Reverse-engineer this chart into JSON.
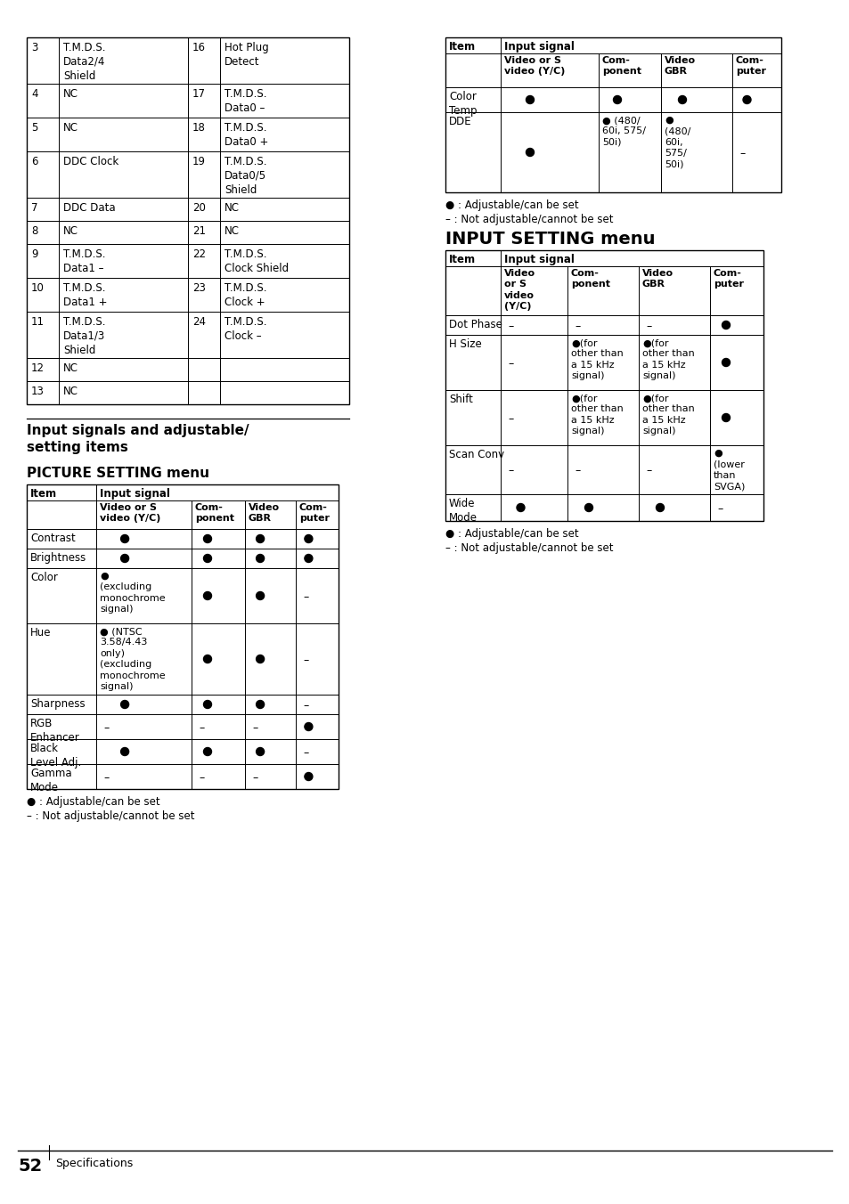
{
  "page_num": "52",
  "page_label": "Specifications",
  "top_table_rows": [
    [
      "3",
      "T.M.D.S.\nData2/4\nShield",
      "16",
      "Hot Plug\nDetect"
    ],
    [
      "4",
      "NC",
      "17",
      "T.M.D.S.\nData0 –"
    ],
    [
      "5",
      "NC",
      "18",
      "T.M.D.S.\nData0 +"
    ],
    [
      "6",
      "DDC Clock",
      "19",
      "T.M.D.S.\nData0/5\nShield"
    ],
    [
      "7",
      "DDC Data",
      "20",
      "NC"
    ],
    [
      "8",
      "NC",
      "21",
      "NC"
    ],
    [
      "9",
      "T.M.D.S.\nData1 –",
      "22",
      "T.M.D.S.\nClock Shield"
    ],
    [
      "10",
      "T.M.D.S.\nData1 +",
      "23",
      "T.M.D.S.\nClock +"
    ],
    [
      "11",
      "T.M.D.S.\nData1/3\nShield",
      "24",
      "T.M.D.S.\nClock –"
    ],
    [
      "12",
      "NC",
      "",
      ""
    ],
    [
      "13",
      "NC",
      "",
      ""
    ]
  ],
  "right_top_table": {
    "col_headers": [
      "Video or S\nvideo (Y/C)",
      "Com-\nponent",
      "Video\nGBR",
      "Com-\nputer"
    ],
    "rows": [
      [
        "Color\nTemp",
        "B",
        "B",
        "B",
        "B"
      ],
      [
        "DDE",
        "B",
        "B (480/\n60i, 575/\n50i)",
        "B\n(480/\n60i,\n575/\n50i)",
        "–"
      ]
    ]
  },
  "picture_table": {
    "col_headers": [
      "Video or S\nvideo (Y/C)",
      "Com-\nponent",
      "Video\nGBR",
      "Com-\nputer"
    ],
    "rows": [
      [
        "Contrast",
        "B",
        "B",
        "B",
        "B"
      ],
      [
        "Brightness",
        "B",
        "B",
        "B",
        "B"
      ],
      [
        "Color",
        "B\n(excluding\nmonochrome\nsignal)",
        "B",
        "B",
        "–"
      ],
      [
        "Hue",
        "B (NTSC\n3.58/4.43\nonly)\n(excluding\nmonochrome\nsignal)",
        "B",
        "B",
        "–"
      ],
      [
        "Sharpness",
        "B",
        "B",
        "B",
        "–"
      ],
      [
        "RGB\nEnhancer",
        "–",
        "–",
        "–",
        "B"
      ],
      [
        "Black\nLevel Adj.",
        "B",
        "B",
        "B",
        "–"
      ],
      [
        "Gamma\nMode",
        "–",
        "–",
        "–",
        "B"
      ]
    ]
  },
  "input_table": {
    "col_headers": [
      "Video\nor S\nvideo\n(Y/C)",
      "Com-\nponent",
      "Video\nGBR",
      "Com-\nputer"
    ],
    "rows": [
      [
        "Dot Phase",
        "–",
        "–",
        "–",
        "B"
      ],
      [
        "H Size",
        "–",
        "B(for\nother than\na 15 kHz\nsignal)",
        "B(for\nother than\na 15 kHz\nsignal)",
        "B"
      ],
      [
        "Shift",
        "–",
        "B(for\nother than\na 15 kHz\nsignal)",
        "B(for\nother than\na 15 kHz\nsignal)",
        "B"
      ],
      [
        "Scan Conv",
        "–",
        "–",
        "–",
        "B\n(lower\nthan\nSVGA)"
      ],
      [
        "Wide\nMode",
        "B",
        "B",
        "B",
        "–"
      ]
    ]
  }
}
